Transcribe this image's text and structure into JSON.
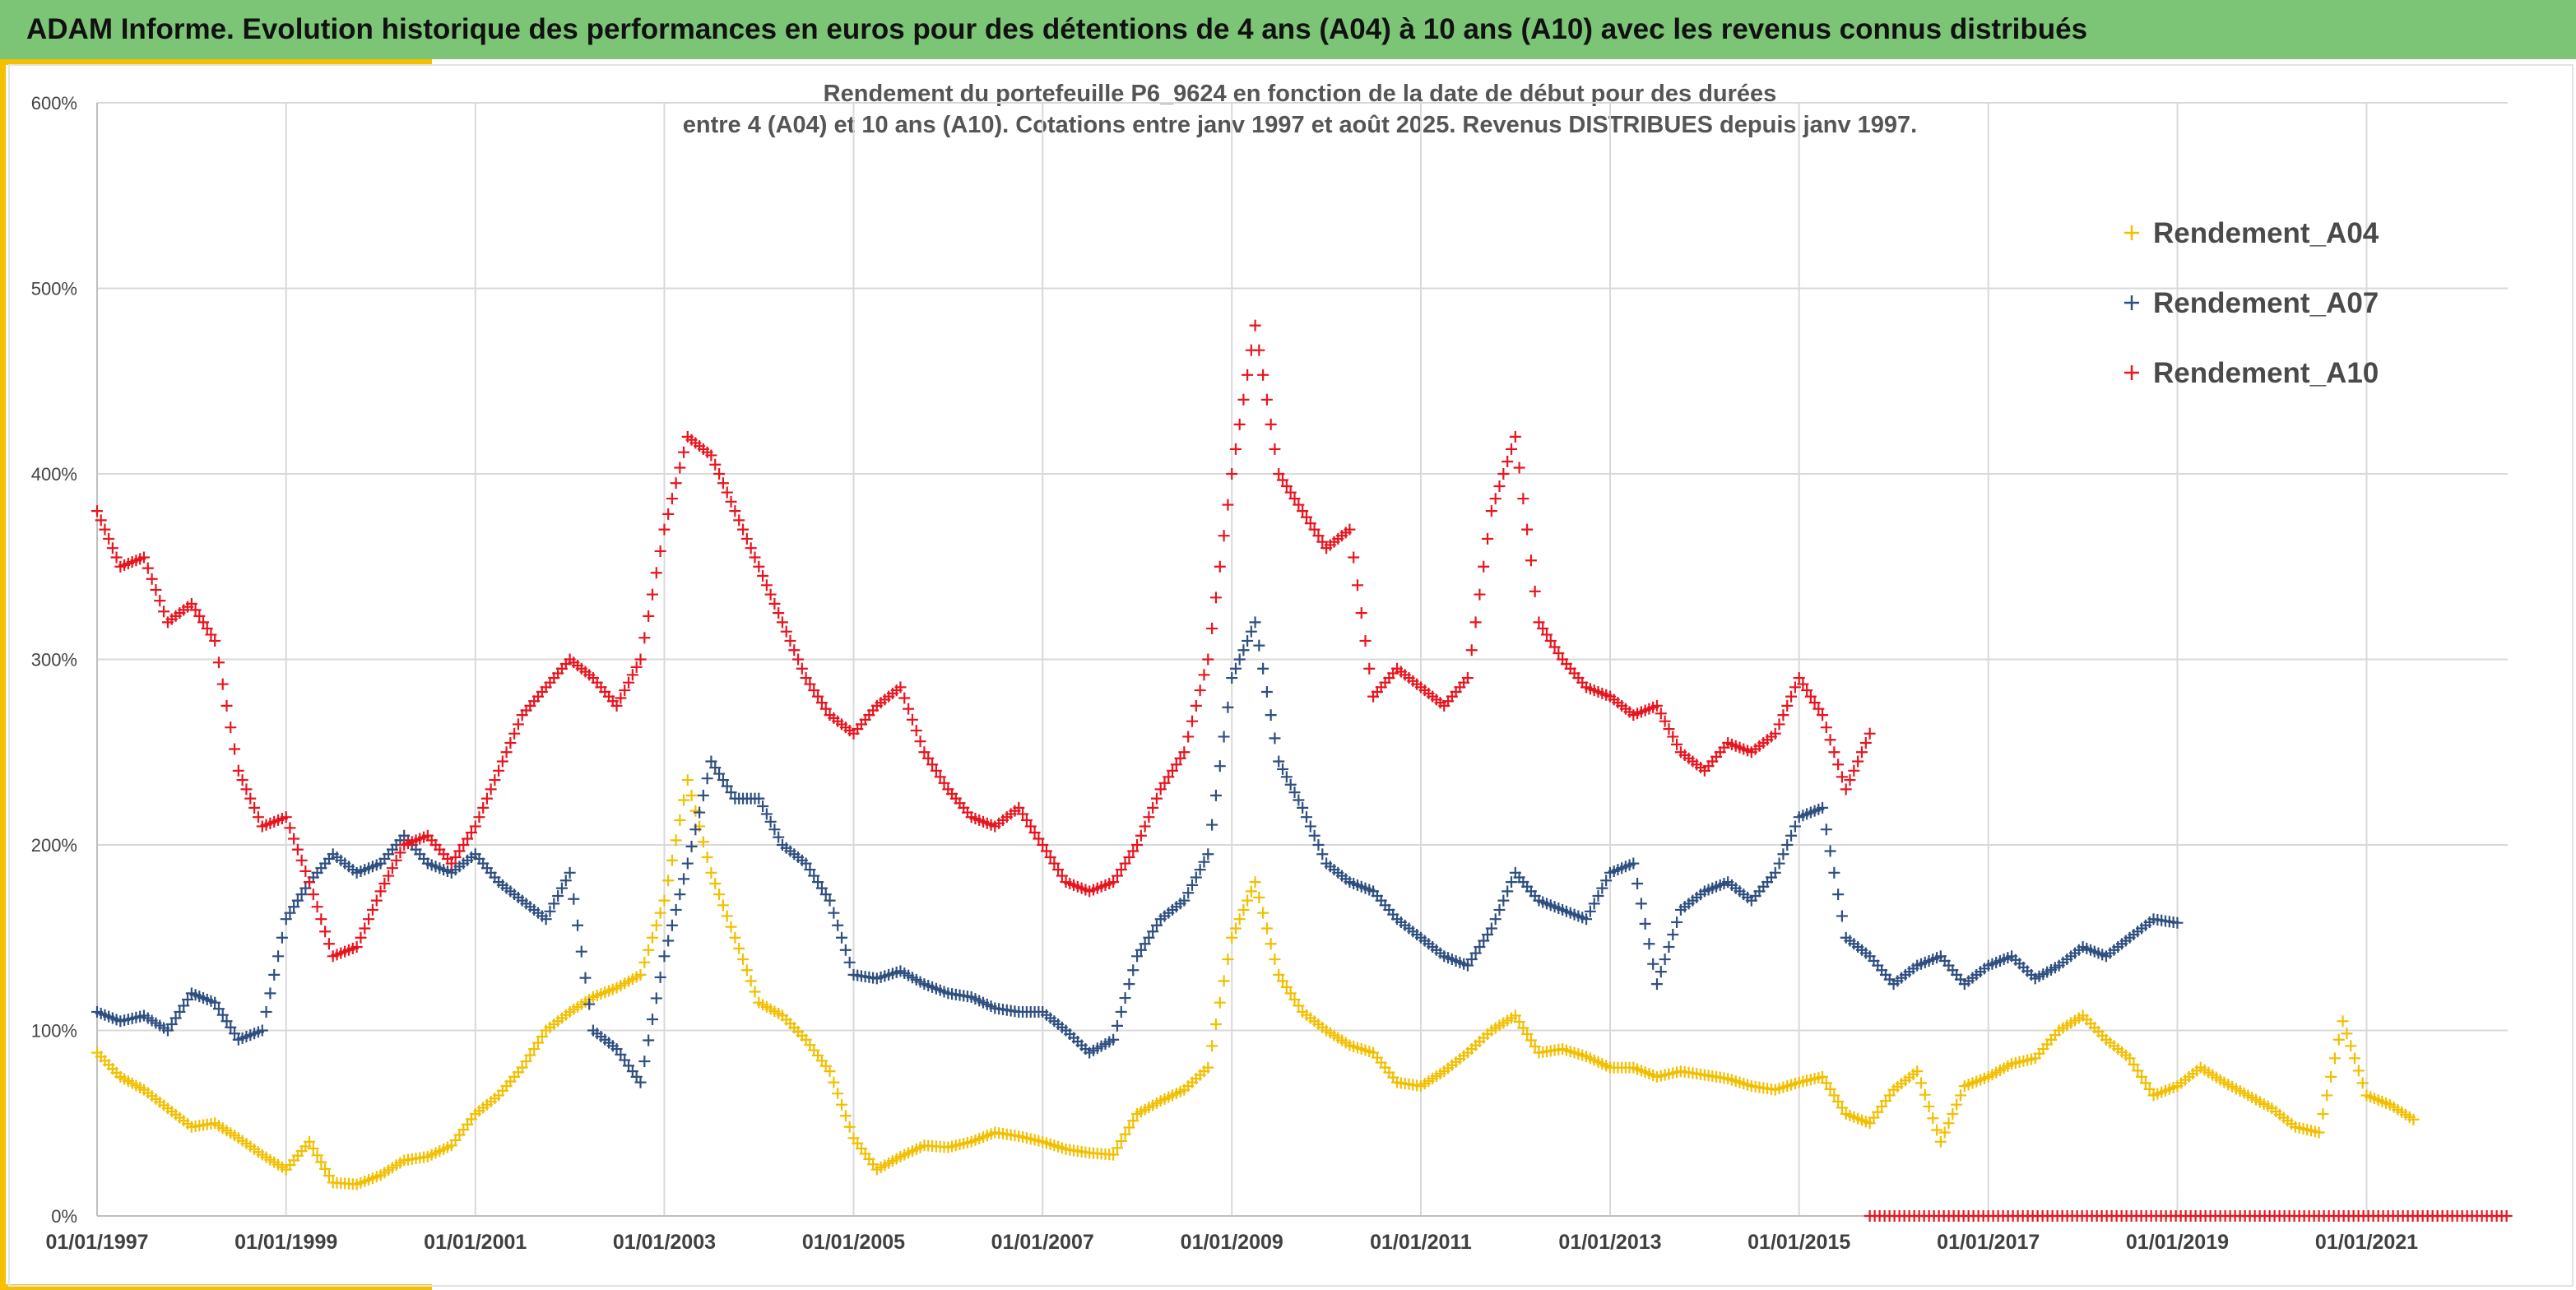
{
  "banner": {
    "title": "ADAM Informe. Evolution historique des performances en euros pour des détentions de 4 ans (A04) à 10 ans (A10) avec les revenus connus distribués"
  },
  "colors": {
    "banner_bg": "#7cc576",
    "accent": "#f5c000",
    "A04": "#f2bf00",
    "A07": "#2f4f7f",
    "A10": "#e8141e"
  },
  "chart_data": {
    "type": "scatter",
    "marker": "plus",
    "title_lines": [
      "Rendement du portefeuille P6_9624 en fonction de la date de début pour des durées",
      "entre 4 (A04) et 10 ans (A10). Cotations entre janv 1997 et août 2025. Revenus DISTRIBUES depuis janv 1997."
    ],
    "ylim": [
      0,
      600
    ],
    "yticks": [
      0,
      100,
      200,
      300,
      400,
      500,
      600
    ],
    "ytick_labels": [
      "0%",
      "100%",
      "200%",
      "300%",
      "400%",
      "500%",
      "600%"
    ],
    "xlim": [
      "1997-01-01",
      "2022-06-30"
    ],
    "xticks": [
      "1997-01-01",
      "1999-01-01",
      "2001-01-01",
      "2003-01-01",
      "2005-01-01",
      "2007-01-01",
      "2009-01-01",
      "2011-01-01",
      "2013-01-01",
      "2015-01-01",
      "2017-01-01",
      "2019-01-01",
      "2021-01-01"
    ],
    "xtick_labels": [
      "01/01/1997",
      "01/01/1999",
      "01/01/2001",
      "01/01/2003",
      "01/01/2005",
      "01/01/2007",
      "01/01/2009",
      "01/01/2011",
      "01/01/2013",
      "01/01/2015",
      "01/01/2017",
      "01/01/2019",
      "01/01/2021"
    ],
    "grid": true,
    "legend_position": "top-right",
    "series": [
      {
        "name": "Rendement_A04",
        "color": "#f2bf00",
        "dates": [
          "1997-01-01",
          "1997-04-01",
          "1997-07-01",
          "1997-10-01",
          "1998-01-01",
          "1998-04-01",
          "1998-07-01",
          "1998-10-01",
          "1999-01-01",
          "1999-04-01",
          "1999-07-01",
          "1999-10-01",
          "2000-01-01",
          "2000-04-01",
          "2000-07-01",
          "2000-10-01",
          "2001-01-01",
          "2001-04-01",
          "2001-07-01",
          "2001-10-01",
          "2002-01-01",
          "2002-04-01",
          "2002-07-01",
          "2002-10-01",
          "2003-01-01",
          "2003-04-01",
          "2003-07-01",
          "2003-10-01",
          "2004-01-01",
          "2004-04-01",
          "2004-07-01",
          "2004-10-01",
          "2005-01-01",
          "2005-04-01",
          "2005-07-01",
          "2005-10-01",
          "2006-01-01",
          "2006-04-01",
          "2006-07-01",
          "2006-10-01",
          "2007-01-01",
          "2007-04-01",
          "2007-07-01",
          "2007-10-01",
          "2008-01-01",
          "2008-04-01",
          "2008-07-01",
          "2008-10-01",
          "2009-01-01",
          "2009-04-01",
          "2009-07-01",
          "2009-10-01",
          "2010-01-01",
          "2010-04-01",
          "2010-07-01",
          "2010-10-01",
          "2011-01-01",
          "2011-04-01",
          "2011-07-01",
          "2011-10-01",
          "2012-01-01",
          "2012-04-01",
          "2012-07-01",
          "2012-10-01",
          "2013-01-01",
          "2013-04-01",
          "2013-07-01",
          "2013-10-01",
          "2014-01-01",
          "2014-04-01",
          "2014-07-01",
          "2014-10-01",
          "2015-01-01",
          "2015-04-01",
          "2015-07-01",
          "2015-10-01",
          "2016-01-01",
          "2016-04-01",
          "2016-07-01",
          "2016-10-01",
          "2017-01-01",
          "2017-04-01",
          "2017-07-01",
          "2017-10-01",
          "2018-01-01",
          "2018-04-01",
          "2018-07-01",
          "2018-10-01",
          "2019-01-01",
          "2019-04-01",
          "2019-07-01",
          "2019-10-01",
          "2020-01-01",
          "2020-04-01",
          "2020-07-01",
          "2020-10-01",
          "2021-01-01",
          "2021-04-01",
          "2021-07-01"
        ],
        "values": [
          88,
          75,
          68,
          58,
          48,
          50,
          42,
          33,
          25,
          40,
          18,
          17,
          22,
          30,
          32,
          38,
          55,
          65,
          80,
          100,
          110,
          118,
          123,
          130,
          170,
          235,
          185,
          150,
          115,
          108,
          95,
          78,
          42,
          25,
          32,
          38,
          37,
          40,
          45,
          43,
          40,
          36,
          34,
          33,
          55,
          62,
          68,
          80,
          150,
          180,
          130,
          110,
          100,
          92,
          88,
          72,
          70,
          78,
          88,
          100,
          108,
          88,
          90,
          86,
          80,
          80,
          75,
          78,
          76,
          74,
          70,
          68,
          72,
          75,
          55,
          50,
          68,
          78,
          40,
          70,
          75,
          82,
          85,
          100,
          108,
          95,
          85,
          65,
          70,
          80,
          72,
          65,
          58,
          48,
          45,
          105,
          65,
          60,
          52
        ]
      },
      {
        "name": "Rendement_A07",
        "color": "#2f4f7f",
        "dates": [
          "1997-01-01",
          "1997-04-01",
          "1997-07-01",
          "1997-10-01",
          "1998-01-01",
          "1998-04-01",
          "1998-07-01",
          "1998-10-01",
          "1999-01-01",
          "1999-04-01",
          "1999-07-01",
          "1999-10-01",
          "2000-01-01",
          "2000-04-01",
          "2000-07-01",
          "2000-10-01",
          "2001-01-01",
          "2001-04-01",
          "2001-07-01",
          "2001-10-01",
          "2002-01-01",
          "2002-04-01",
          "2002-07-01",
          "2002-10-01",
          "2003-01-01",
          "2003-04-01",
          "2003-07-01",
          "2003-10-01",
          "2004-01-01",
          "2004-04-01",
          "2004-07-01",
          "2004-10-01",
          "2005-01-01",
          "2005-04-01",
          "2005-07-01",
          "2005-10-01",
          "2006-01-01",
          "2006-04-01",
          "2006-07-01",
          "2006-10-01",
          "2007-01-01",
          "2007-04-01",
          "2007-07-01",
          "2007-10-01",
          "2008-01-01",
          "2008-04-01",
          "2008-07-01",
          "2008-10-01",
          "2009-01-01",
          "2009-04-01",
          "2009-07-01",
          "2009-10-01",
          "2010-01-01",
          "2010-04-01",
          "2010-07-01",
          "2010-10-01",
          "2011-01-01",
          "2011-04-01",
          "2011-07-01",
          "2011-10-01",
          "2012-01-01",
          "2012-04-01",
          "2012-07-01",
          "2012-10-01",
          "2013-01-01",
          "2013-04-01",
          "2013-07-01",
          "2013-10-01",
          "2014-01-01",
          "2014-04-01",
          "2014-07-01",
          "2014-10-01",
          "2015-01-01",
          "2015-04-01",
          "2015-07-01",
          "2015-10-01",
          "2016-01-01",
          "2016-04-01",
          "2016-07-01",
          "2016-10-01",
          "2017-01-01",
          "2017-04-01",
          "2017-07-01",
          "2017-10-01",
          "2018-01-01",
          "2018-04-01",
          "2018-07-01",
          "2018-10-01",
          "2019-01-01"
        ],
        "values": [
          110,
          105,
          108,
          100,
          120,
          115,
          95,
          100,
          160,
          180,
          195,
          185,
          190,
          205,
          190,
          185,
          195,
          180,
          170,
          160,
          185,
          100,
          90,
          72,
          140,
          190,
          245,
          225,
          225,
          200,
          190,
          170,
          130,
          128,
          132,
          125,
          120,
          118,
          112,
          110,
          110,
          100,
          88,
          95,
          140,
          160,
          170,
          195,
          290,
          320,
          245,
          220,
          190,
          180,
          175,
          160,
          150,
          140,
          135,
          155,
          185,
          170,
          165,
          160,
          185,
          190,
          125,
          165,
          175,
          180,
          170,
          185,
          215,
          220,
          150,
          140,
          125,
          135,
          140,
          125,
          135,
          140,
          128,
          135,
          145,
          140,
          150,
          160,
          158
        ]
      },
      {
        "name": "Rendement_A10",
        "color": "#e8141e",
        "dates": [
          "1997-01-01",
          "1997-04-01",
          "1997-07-01",
          "1997-10-01",
          "1998-01-01",
          "1998-04-01",
          "1998-07-01",
          "1998-10-01",
          "1999-01-01",
          "1999-04-01",
          "1999-07-01",
          "1999-10-01",
          "2000-01-01",
          "2000-04-01",
          "2000-07-01",
          "2000-10-01",
          "2001-01-01",
          "2001-04-01",
          "2001-07-01",
          "2001-10-01",
          "2002-01-01",
          "2002-04-01",
          "2002-07-01",
          "2002-10-01",
          "2003-01-01",
          "2003-04-01",
          "2003-07-01",
          "2003-10-01",
          "2004-01-01",
          "2004-04-01",
          "2004-07-01",
          "2004-10-01",
          "2005-01-01",
          "2005-04-01",
          "2005-07-01",
          "2005-10-01",
          "2006-01-01",
          "2006-04-01",
          "2006-07-01",
          "2006-10-01",
          "2007-01-01",
          "2007-04-01",
          "2007-07-01",
          "2007-10-01",
          "2008-01-01",
          "2008-04-01",
          "2008-07-01",
          "2008-10-01",
          "2009-01-01",
          "2009-04-01",
          "2009-07-01",
          "2009-10-01",
          "2010-01-01",
          "2010-04-01",
          "2010-07-01",
          "2010-10-01",
          "2011-01-01",
          "2011-04-01",
          "2011-07-01",
          "2011-10-01",
          "2012-01-01",
          "2012-04-01",
          "2012-07-01",
          "2012-10-01",
          "2013-01-01",
          "2013-04-01",
          "2013-07-01",
          "2013-10-01",
          "2014-01-01",
          "2014-04-01",
          "2014-07-01",
          "2014-10-01",
          "2015-01-01",
          "2015-04-01",
          "2015-07-01",
          "2015-10-01"
        ],
        "values": [
          380,
          350,
          355,
          320,
          330,
          310,
          240,
          210,
          215,
          180,
          140,
          145,
          175,
          200,
          205,
          190,
          210,
          240,
          270,
          285,
          300,
          290,
          275,
          300,
          370,
          420,
          410,
          380,
          350,
          320,
          290,
          270,
          260,
          275,
          285,
          250,
          230,
          215,
          210,
          220,
          200,
          180,
          175,
          180,
          200,
          230,
          250,
          300,
          400,
          480,
          400,
          380,
          360,
          370,
          280,
          295,
          285,
          275,
          290,
          380,
          420,
          320,
          300,
          285,
          280,
          270,
          275,
          250,
          240,
          255,
          250,
          260,
          290,
          270,
          230,
          260
        ],
        "tail": {
          "from": "2015-10-01",
          "to": "2022-06-30",
          "value": 0
        }
      }
    ]
  }
}
